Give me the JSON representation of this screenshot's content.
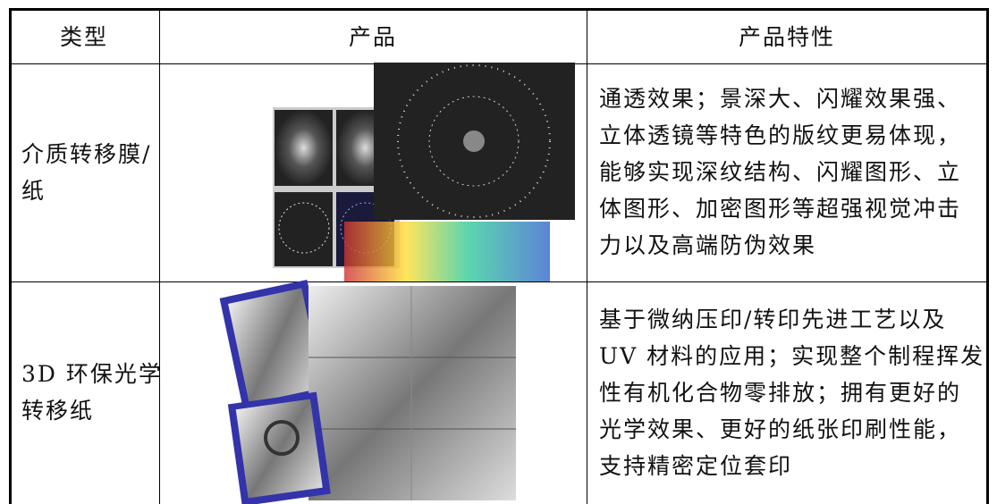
{
  "table": {
    "header": [
      "类型",
      "产品",
      "产品特性"
    ],
    "rows": [
      {
        "type": [
          "介质转移膜/",
          "纸"
        ],
        "features": [
          "通透效果；景深大、闪耀效果强、",
          "立体透镜等特色的版纹更易体现，",
          "能够实现深纹结构、闪耀图形、立",
          "体图形、加密图形等超强视觉冲击",
          "力以及高端防伪效果"
        ]
      },
      {
        "type": [
          "3D 环保光学",
          "转移纸"
        ],
        "features": [
          "基于微纳压印/转印先进工艺以及",
          "UV 材料的应用；实现整个制程挥发",
          "性有机化合物零排放；拥有更好的",
          "光学效果、更好的纸张印刷性能，",
          "支持精密定位套印"
        ]
      }
    ]
  }
}
